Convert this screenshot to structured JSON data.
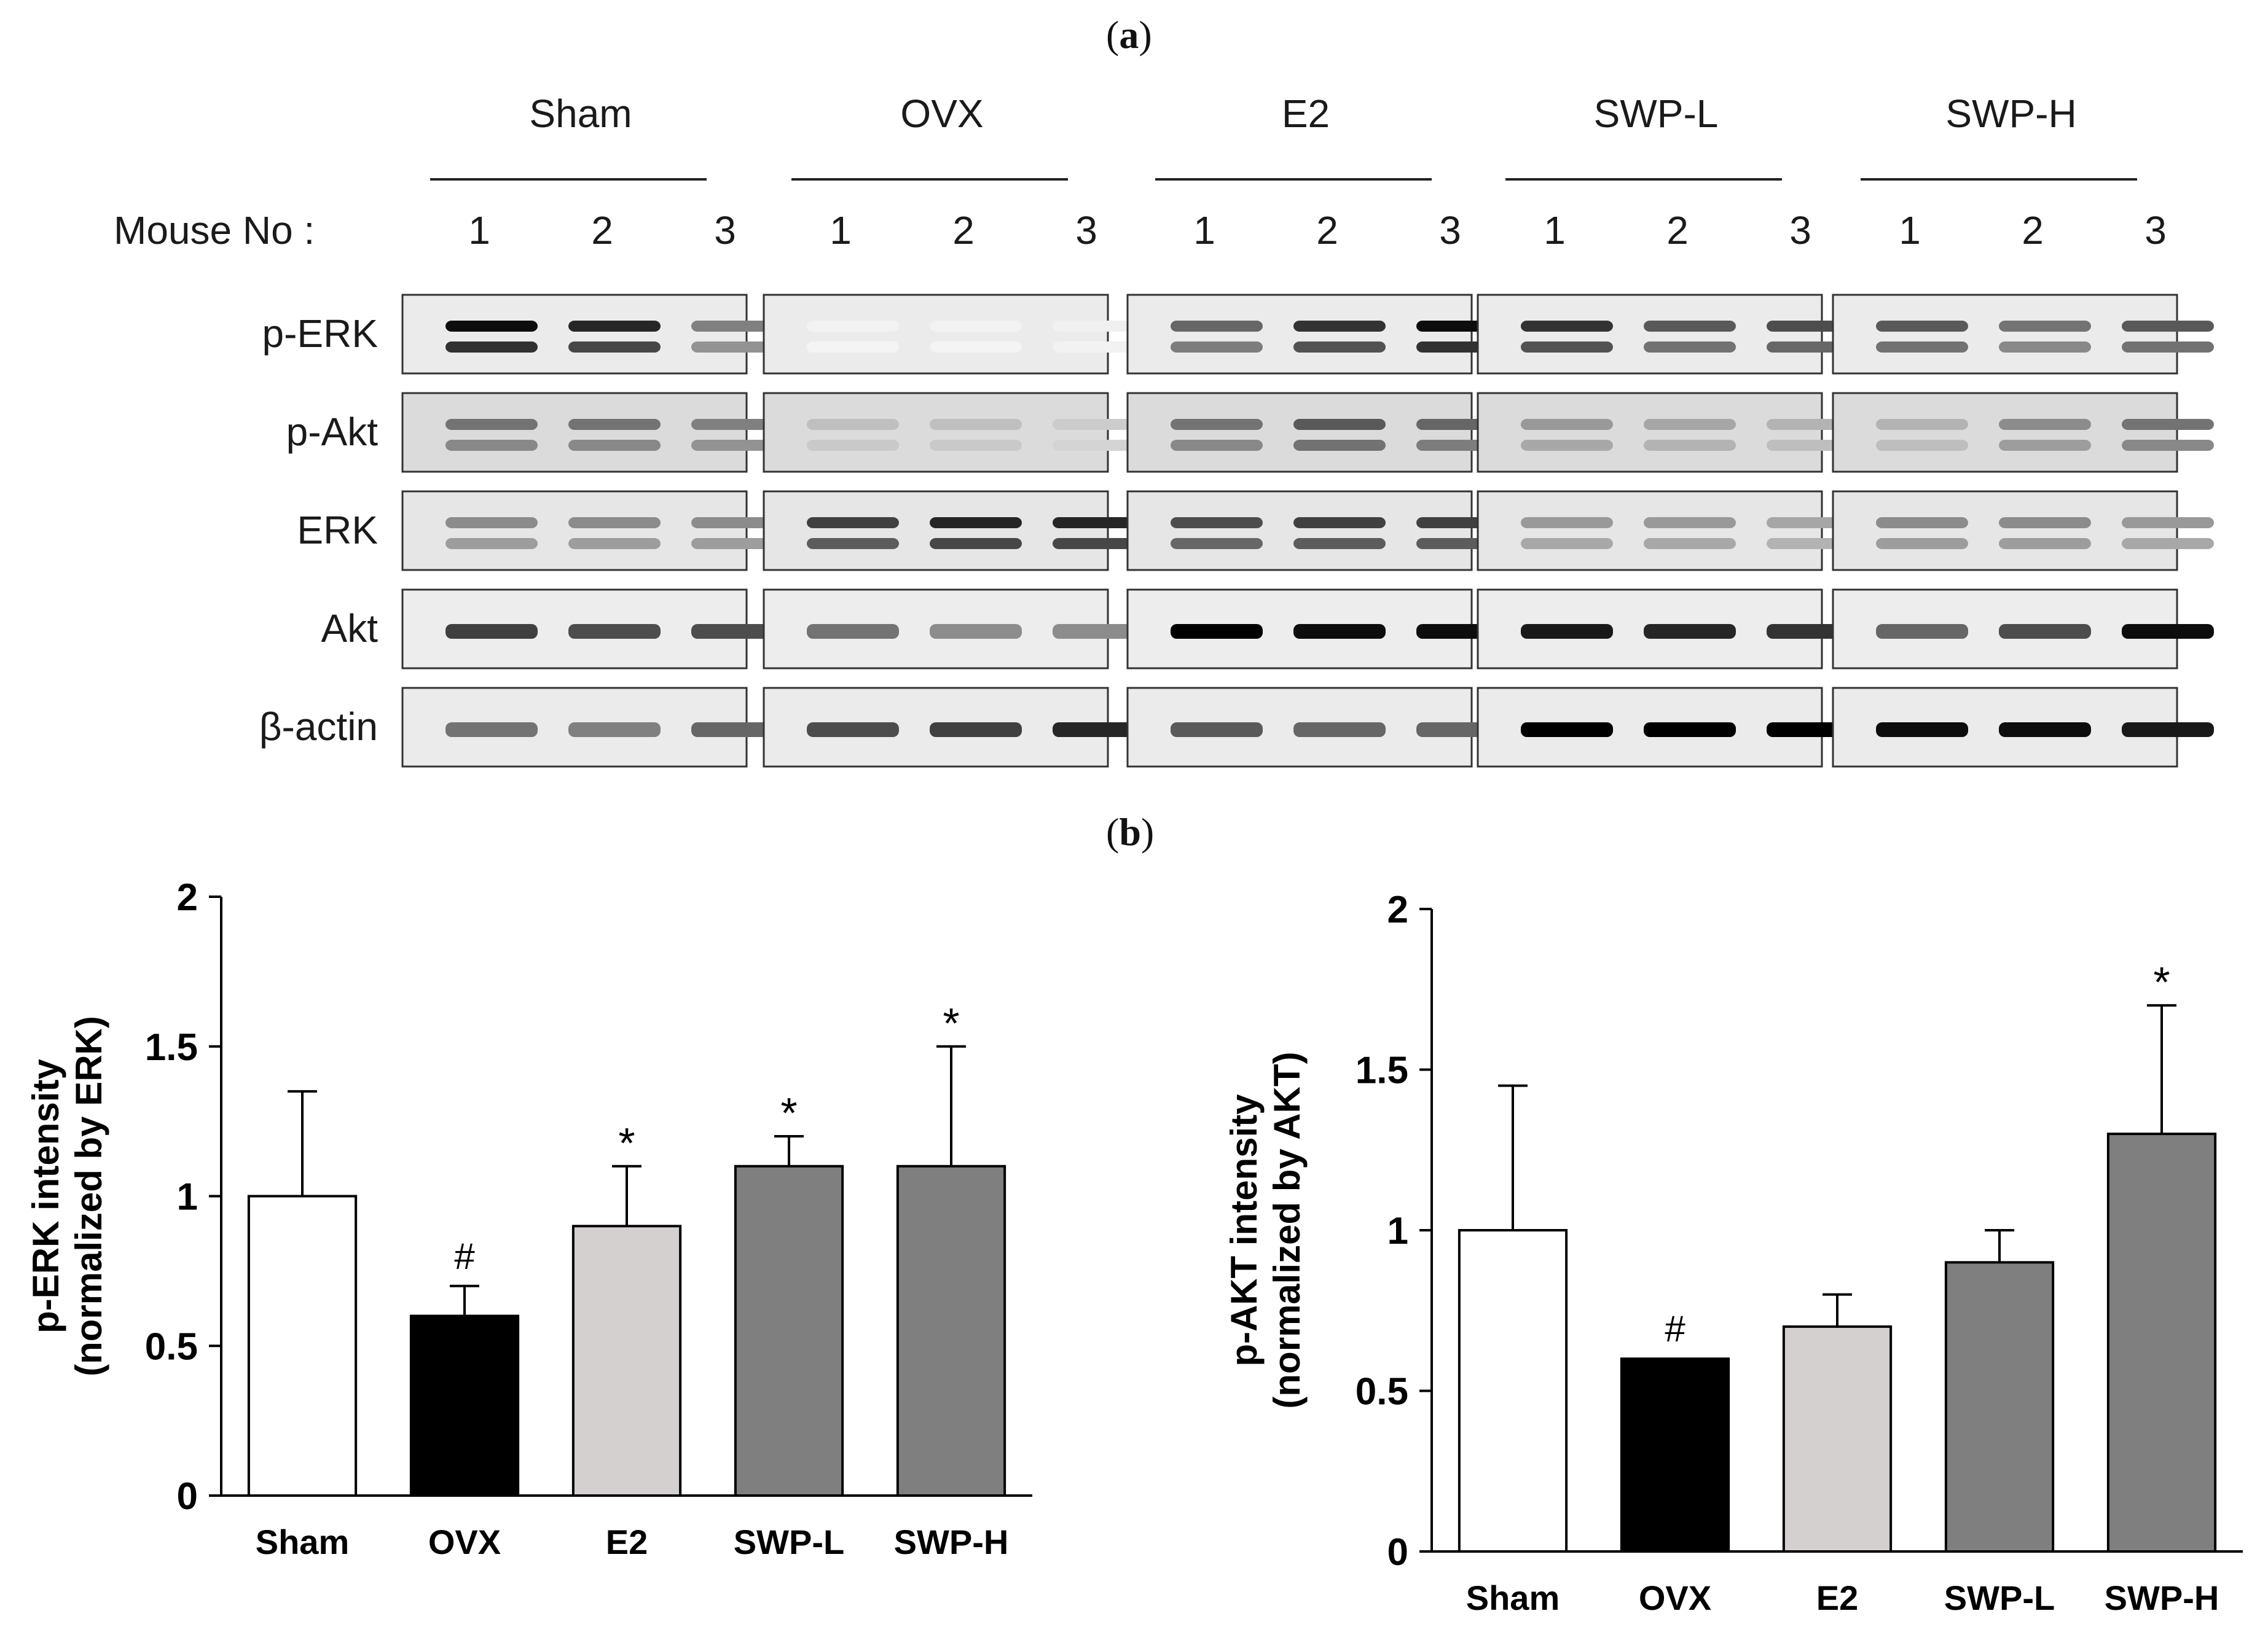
{
  "panel_a": {
    "label_open": "(",
    "label_letter": "a",
    "label_close": ")",
    "mouse_label": "Mouse No :",
    "groups": [
      "Sham",
      "OVX",
      "E2",
      "SWP-L",
      "SWP-H"
    ],
    "lanes": [
      "1",
      "2",
      "3"
    ],
    "rows": [
      "p-ERK",
      "p-Akt",
      "ERK",
      "Akt",
      "β-actin"
    ]
  },
  "panel_b": {
    "label_open": "(",
    "label_letter": "b",
    "label_close": ")"
  },
  "chart_data": [
    {
      "type": "bar",
      "title": "",
      "categories": [
        "Sham",
        "OVX",
        "E2",
        "SWP-L",
        "SWP-H"
      ],
      "values": [
        1.0,
        0.6,
        0.9,
        1.1,
        1.1
      ],
      "errors": [
        0.35,
        0.1,
        0.2,
        0.1,
        0.4
      ],
      "annotations": [
        "",
        "#",
        "*",
        "*",
        "*"
      ],
      "bar_colors": [
        "#ffffff",
        "#000000",
        "#d4d0d0",
        "#7f7f7f",
        "#7f7f7f"
      ],
      "ylabel_line1": "p-ERK intensity",
      "ylabel_line2": "(normalized by ERK)",
      "xlabel": "",
      "ylim": [
        0,
        2
      ],
      "yticks": [
        "0",
        "0.5",
        "1",
        "1.5",
        "2"
      ],
      "grid": false
    },
    {
      "type": "bar",
      "title": "",
      "categories": [
        "Sham",
        "OVX",
        "E2",
        "SWP-L",
        "SWP-H"
      ],
      "values": [
        1.0,
        0.6,
        0.7,
        0.9,
        1.3
      ],
      "errors": [
        0.45,
        0.0,
        0.1,
        0.1,
        0.4
      ],
      "annotations": [
        "",
        "#",
        "",
        "",
        "*"
      ],
      "bar_colors": [
        "#ffffff",
        "#000000",
        "#d4d0d0",
        "#7f7f7f",
        "#7f7f7f"
      ],
      "ylabel_line1": "p-AKT intensity",
      "ylabel_line2": "(normalized by AKT)",
      "xlabel": "",
      "ylim": [
        0,
        2
      ],
      "yticks": [
        "0",
        "0.5",
        "1",
        "1.5",
        "2"
      ],
      "grid": false
    }
  ]
}
